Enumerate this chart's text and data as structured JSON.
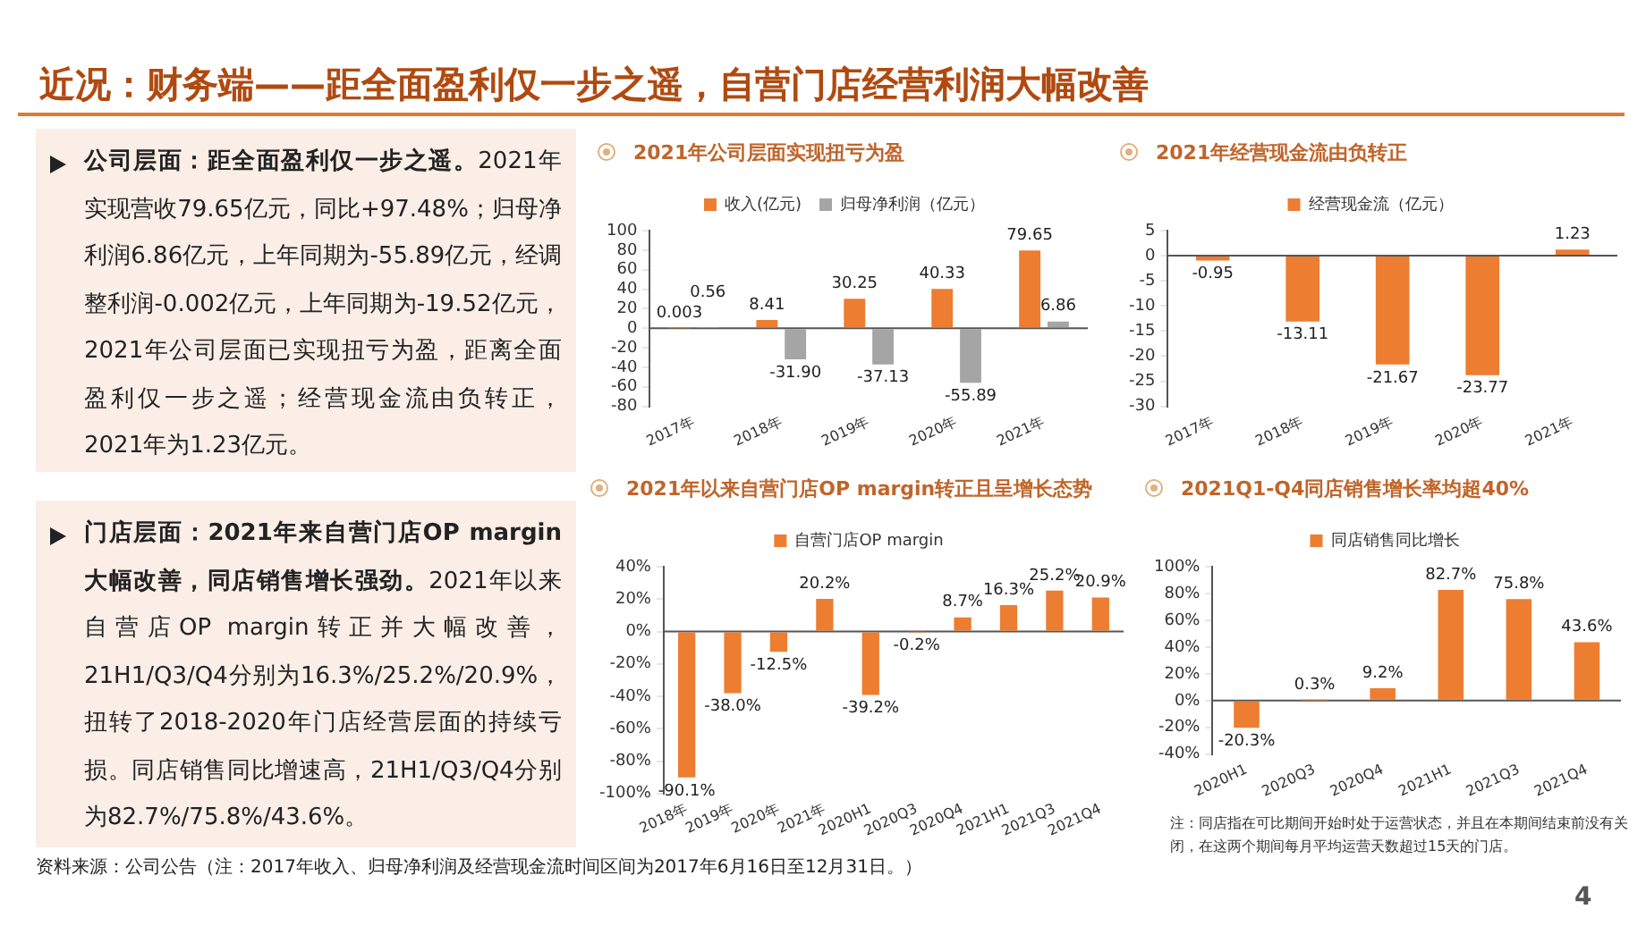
{
  "chart_data": [
    {
      "type": "other",
      "title": "近况：财务端——距全面盈利仅一步之遥，自营门店经营利润大幅改善",
      "annotations": [
        "公司层面：距全面盈利仅一步之遥。",
        "2021年实现营收79.65亿元，同比+97.48%；归母净利润6.86亿元，上年同期为-55.89亿元，经调整利润-0.002亿元，上年同期为-19.52亿元，2021年公司层面已实现扭亏为盈，距离全面盈利仅一步之遥；经营现金流由负转正，2021年为1.23亿元。",
        "门店层面：2021年来自营门店OP margin大幅改善，同店销售增长强劲。",
        "2021年以来自营店OP margin转正并大幅改善，21H1/Q3/Q4分别为16.3%/25.2%/20.9%，扭转了2018-2020年门店经营层面的持续亏损。同店销售同比增速高，21H1/Q3/Q4分别为82.7%/75.8%/43.6%。",
        "资料来源：公司公告（注：2017年收入、归母净利润及经营现金流时间区间为2017年6月16日至12月31日。）",
        "4"
      ]
    },
    {
      "type": "bar",
      "title": "2021年公司层面实现扭亏为盈",
      "categories": [
        "2017年",
        "2018年",
        "2019年",
        "2020年",
        "2021年"
      ],
      "legend": "top",
      "ylim": [
        -80,
        100
      ],
      "yticks": [
        -80,
        -60,
        -40,
        -20,
        0,
        20,
        40,
        60,
        80,
        100
      ],
      "series": [
        {
          "name": "收入(亿元)",
          "color": "#ed7d31",
          "values": [
            0.003,
            8.41,
            30.25,
            40.33,
            79.65
          ],
          "value_labels": [
            "0.003",
            "8.41",
            "30.25",
            "40.33",
            "79.65"
          ]
        },
        {
          "name": "归母净利润（亿元）",
          "color": "#a5a5a5",
          "values": [
            0.56,
            -31.9,
            -37.13,
            -55.89,
            6.86
          ],
          "value_labels": [
            "0.56",
            "-31.90",
            "-37.13",
            "-55.89",
            "6.86"
          ]
        }
      ]
    },
    {
      "type": "bar",
      "title": "2021年经营现金流由负转正",
      "categories": [
        "2017年",
        "2018年",
        "2019年",
        "2020年",
        "2021年"
      ],
      "legend": "top",
      "ylim": [
        -30,
        5
      ],
      "yticks": [
        -30,
        -25,
        -20,
        -15,
        -10,
        -5,
        0,
        5
      ],
      "series": [
        {
          "name": "经营现金流（亿元）",
          "color": "#ed7d31",
          "values": [
            -0.95,
            -13.11,
            -21.67,
            -23.77,
            1.23
          ],
          "value_labels": [
            "-0.95",
            "-13.11",
            "-21.67",
            "-23.77",
            "1.23"
          ]
        }
      ]
    },
    {
      "type": "bar",
      "title": "2021年以来自营门店OP margin转正且呈增长态势",
      "categories": [
        "2018年",
        "2019年",
        "2020年",
        "2021年",
        "2020H1",
        "2020Q3",
        "2020Q4",
        "2021H1",
        "2021Q3",
        "2021Q4"
      ],
      "legend": "top",
      "ylim": [
        -100,
        40
      ],
      "yticks": [
        {
          "value": -100,
          "label": "-100%"
        },
        {
          "value": -80,
          "label": "-80%"
        },
        {
          "value": -60,
          "label": "-60%"
        },
        {
          "value": -40,
          "label": "-40%"
        },
        {
          "value": -20,
          "label": "-20%"
        },
        {
          "value": 0,
          "label": "0%"
        },
        {
          "value": 20,
          "label": "20%"
        },
        {
          "value": 40,
          "label": "40%"
        }
      ],
      "series": [
        {
          "name": "自营门店OP margin",
          "color": "#ed7d31",
          "values": [
            -90.1,
            -38.0,
            -12.5,
            20.2,
            -39.2,
            -0.2,
            8.7,
            16.3,
            25.2,
            20.9
          ],
          "value_labels": [
            "-90.1%",
            "-38.0%",
            "-12.5%",
            "20.2%",
            "-39.2%",
            "-0.2%",
            "8.7%",
            "16.3%",
            "25.2%",
            "20.9%"
          ]
        }
      ]
    },
    {
      "type": "bar",
      "title": "2021Q1-Q4同店销售增长率均超40%",
      "categories": [
        "2020H1",
        "2020Q3",
        "2020Q4",
        "2021H1",
        "2021Q3",
        "2021Q4"
      ],
      "legend": "top",
      "ylim": [
        -40,
        100
      ],
      "yticks": [
        {
          "value": -40,
          "label": "-40%"
        },
        {
          "value": -20,
          "label": "-20%"
        },
        {
          "value": 0,
          "label": "0%"
        },
        {
          "value": 20,
          "label": "20%"
        },
        {
          "value": 40,
          "label": "40%"
        },
        {
          "value": 60,
          "label": "60%"
        },
        {
          "value": 80,
          "label": "80%"
        },
        {
          "value": 100,
          "label": "100%"
        }
      ],
      "annotations": [
        "注：同店指在可比期间开始时处于运营状态，并且在本期间结束前没有关闭，在这两个期间每月平均运营天数超过15天的门店。"
      ],
      "series": [
        {
          "name": "同店销售同比增长",
          "color": "#ed7d31",
          "values": [
            -20.3,
            0.3,
            9.2,
            82.7,
            75.8,
            43.6
          ],
          "value_labels": [
            "-20.3%",
            "0.3%",
            "9.2%",
            "82.7%",
            "75.8%",
            "43.6%"
          ]
        }
      ]
    }
  ]
}
